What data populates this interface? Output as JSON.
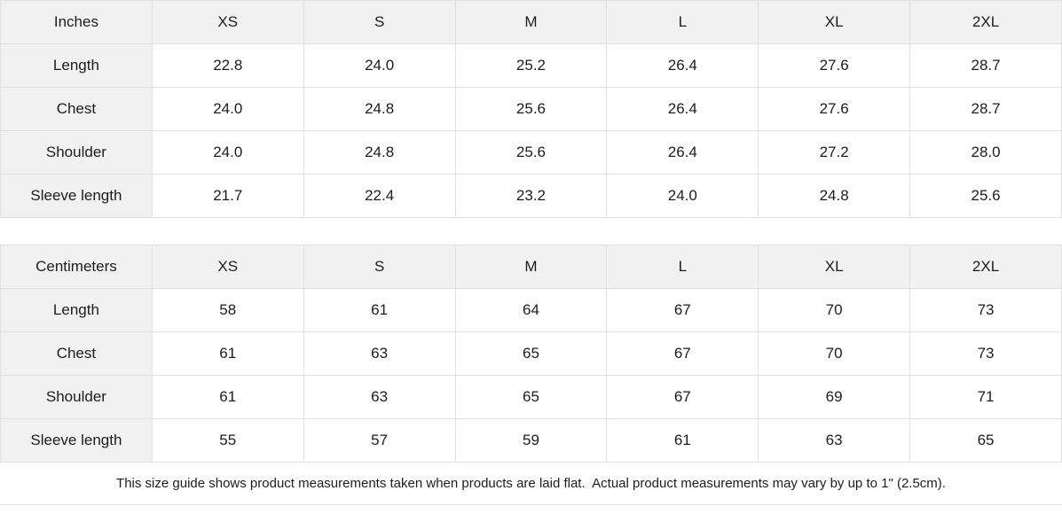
{
  "colors": {
    "cell_bg_shaded": "#f1f1f1",
    "border": "#e0e0e0",
    "text": "#1c1c1e"
  },
  "inches_table": {
    "unit_label": "Inches",
    "sizes": [
      "XS",
      "S",
      "M",
      "L",
      "XL",
      "2XL"
    ],
    "rows": [
      {
        "label": "Length",
        "values": [
          "22.8",
          "24.0",
          "25.2",
          "26.4",
          "27.6",
          "28.7"
        ]
      },
      {
        "label": "Chest",
        "values": [
          "24.0",
          "24.8",
          "25.6",
          "26.4",
          "27.6",
          "28.7"
        ]
      },
      {
        "label": "Shoulder",
        "values": [
          "24.0",
          "24.8",
          "25.6",
          "26.4",
          "27.2",
          "28.0"
        ]
      },
      {
        "label": "Sleeve length",
        "values": [
          "21.7",
          "22.4",
          "23.2",
          "24.0",
          "24.8",
          "25.6"
        ]
      }
    ]
  },
  "centimeters_table": {
    "unit_label": "Centimeters",
    "sizes": [
      "XS",
      "S",
      "M",
      "L",
      "XL",
      "2XL"
    ],
    "rows": [
      {
        "label": "Length",
        "values": [
          "58",
          "61",
          "64",
          "67",
          "70",
          "73"
        ]
      },
      {
        "label": "Chest",
        "values": [
          "61",
          "63",
          "65",
          "67",
          "70",
          "73"
        ]
      },
      {
        "label": "Shoulder",
        "values": [
          "61",
          "63",
          "65",
          "67",
          "69",
          "71"
        ]
      },
      {
        "label": "Sleeve length",
        "values": [
          "55",
          "57",
          "59",
          "61",
          "63",
          "65"
        ]
      }
    ]
  },
  "footer": {
    "note": "This size guide shows product measurements taken when products are laid flat.  Actual product measurements may vary by up to 1\" (2.5cm)."
  },
  "chart_data": [
    {
      "type": "table",
      "title": "Inches",
      "columns": [
        "XS",
        "S",
        "M",
        "L",
        "XL",
        "2XL"
      ],
      "row_labels": [
        "Length",
        "Chest",
        "Shoulder",
        "Sleeve length"
      ],
      "values": [
        [
          22.8,
          24.0,
          25.2,
          26.4,
          27.6,
          28.7
        ],
        [
          24.0,
          24.8,
          25.6,
          26.4,
          27.6,
          28.7
        ],
        [
          24.0,
          24.8,
          25.6,
          26.4,
          27.2,
          28.0
        ],
        [
          21.7,
          22.4,
          23.2,
          24.0,
          24.8,
          25.6
        ]
      ]
    },
    {
      "type": "table",
      "title": "Centimeters",
      "columns": [
        "XS",
        "S",
        "M",
        "L",
        "XL",
        "2XL"
      ],
      "row_labels": [
        "Length",
        "Chest",
        "Shoulder",
        "Sleeve length"
      ],
      "values": [
        [
          58,
          61,
          64,
          67,
          70,
          73
        ],
        [
          61,
          63,
          65,
          67,
          70,
          73
        ],
        [
          61,
          63,
          65,
          67,
          69,
          71
        ],
        [
          55,
          57,
          59,
          61,
          63,
          65
        ]
      ]
    }
  ]
}
